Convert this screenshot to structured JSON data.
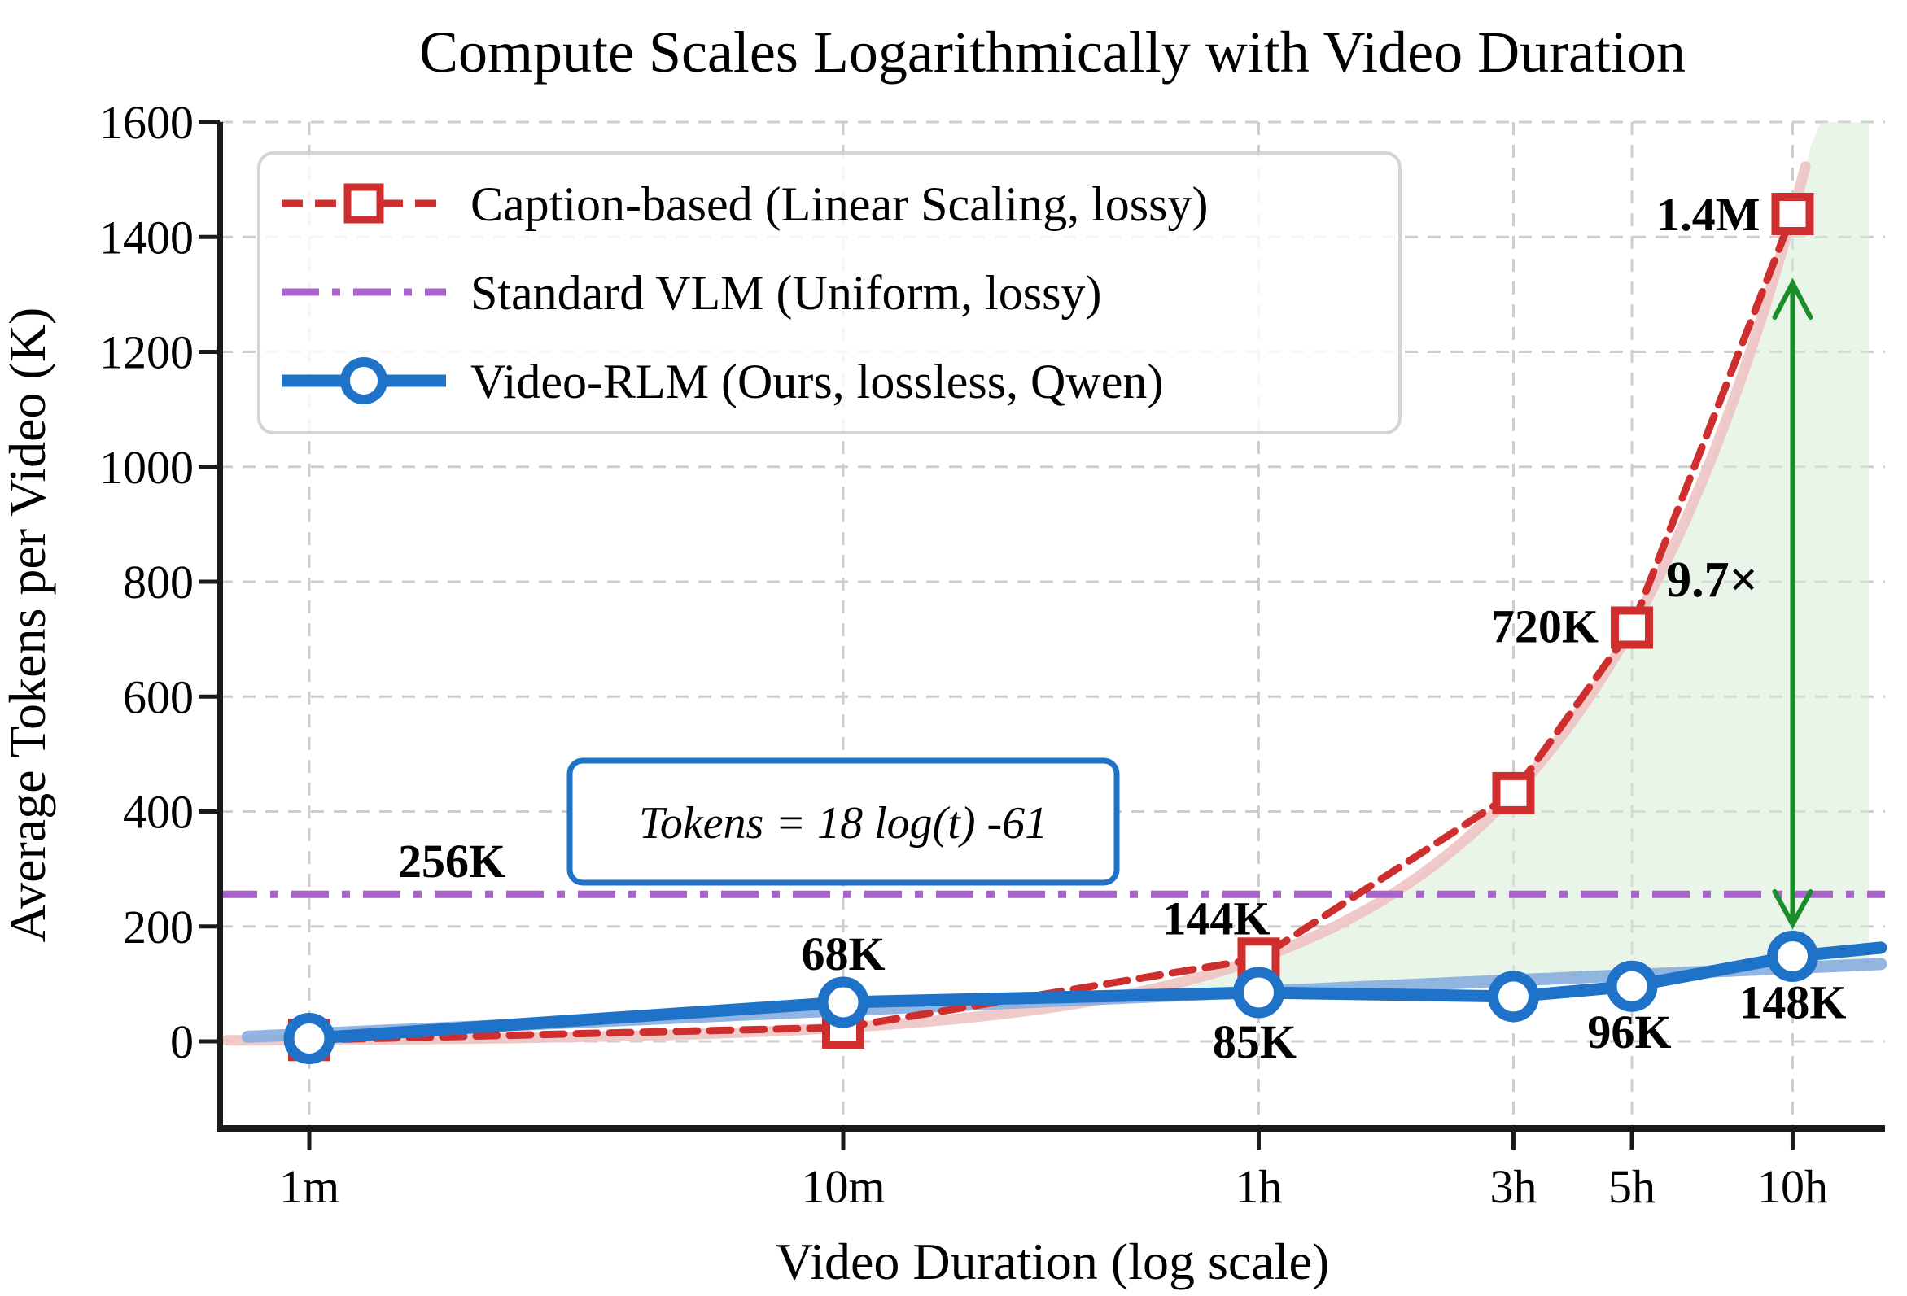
{
  "chart_data": {
    "type": "line",
    "title": "Compute Scales Logarithmically with Video Duration",
    "x_axis": {
      "label": "Video Duration (log scale)",
      "scale": "log",
      "unit": "seconds",
      "ticks": [
        {
          "t": 60,
          "label": "1m"
        },
        {
          "t": 600,
          "label": "10m"
        },
        {
          "t": 3600,
          "label": "1h"
        },
        {
          "t": 10800,
          "label": "3h"
        },
        {
          "t": 18000,
          "label": "5h"
        },
        {
          "t": 36000,
          "label": "10h"
        }
      ],
      "range_seconds": [
        41,
        56000
      ],
      "grid": true
    },
    "y_axis": {
      "label": "Average Tokens per Video (K)",
      "ticks": [
        {
          "v": 0,
          "label": "0"
        },
        {
          "v": 200,
          "label": "200"
        },
        {
          "v": 400,
          "label": "400"
        },
        {
          "v": 600,
          "label": "600"
        },
        {
          "v": 800,
          "label": "800"
        },
        {
          "v": 1000,
          "label": "1000"
        },
        {
          "v": 1200,
          "label": "1200"
        },
        {
          "v": 1400,
          "label": "1400"
        },
        {
          "v": 1600,
          "label": "1600"
        }
      ],
      "range": [
        -150,
        1600
      ],
      "grid": true
    },
    "series": [
      {
        "id": "caption",
        "legend_label": "Caption-based (Linear Scaling, lossy)",
        "style": "dashed",
        "marker": "square",
        "color": "#cf2e2e",
        "fit_color": "#eec3c3",
        "points": [
          {
            "t": 60,
            "v": 2.4
          },
          {
            "t": 600,
            "v": 24
          },
          {
            "t": 3600,
            "v": 144,
            "label": "144K"
          },
          {
            "t": 10800,
            "v": 432
          },
          {
            "t": 18000,
            "v": 720,
            "label": "720K"
          },
          {
            "t": 36000,
            "v": 1440,
            "label": "1.4M"
          }
        ],
        "fit": {
          "type": "linear",
          "tokens_k_per_minute": 2.4
        }
      },
      {
        "id": "vlm",
        "legend_label": "Standard VLM (Uniform, lossy)",
        "style": "dashdot",
        "marker": "none",
        "color": "#a763c8",
        "constant_value": 256,
        "value_label": "256K"
      },
      {
        "id": "rlm",
        "legend_label": "Video-RLM (Ours, lossless, Qwen)",
        "style": "solid",
        "marker": "circle",
        "color": "#1e72c8",
        "fit_color": "#86aede",
        "points": [
          {
            "t": 60,
            "v": 5
          },
          {
            "t": 600,
            "v": 68,
            "label": "68K"
          },
          {
            "t": 3600,
            "v": 85,
            "label": "85K"
          },
          {
            "t": 10800,
            "v": 78
          },
          {
            "t": 18000,
            "v": 96,
            "label": "96K"
          },
          {
            "t": 36000,
            "v": 148,
            "label": "148K"
          },
          {
            "t": 52700,
            "v": 163,
            "marker": false
          }
        ],
        "fit": {
          "type": "log",
          "a": 18,
          "b": -61
        }
      }
    ],
    "fit_box": {
      "text": "Tokens = 18 log(t) -61",
      "border_color": "#1e72c8"
    },
    "annotations": {
      "ratio_label": "9.7×",
      "ratio_color_text": "#157a1c",
      "ratio_color_arrow": "#1a8c28",
      "vlm_limit_label": "256K",
      "savings_fill_color": "#d9ecd9"
    },
    "legend": {
      "position": "upper-left",
      "border_color": "#d4d4d4"
    },
    "grid_color": "#cdcdcd"
  }
}
